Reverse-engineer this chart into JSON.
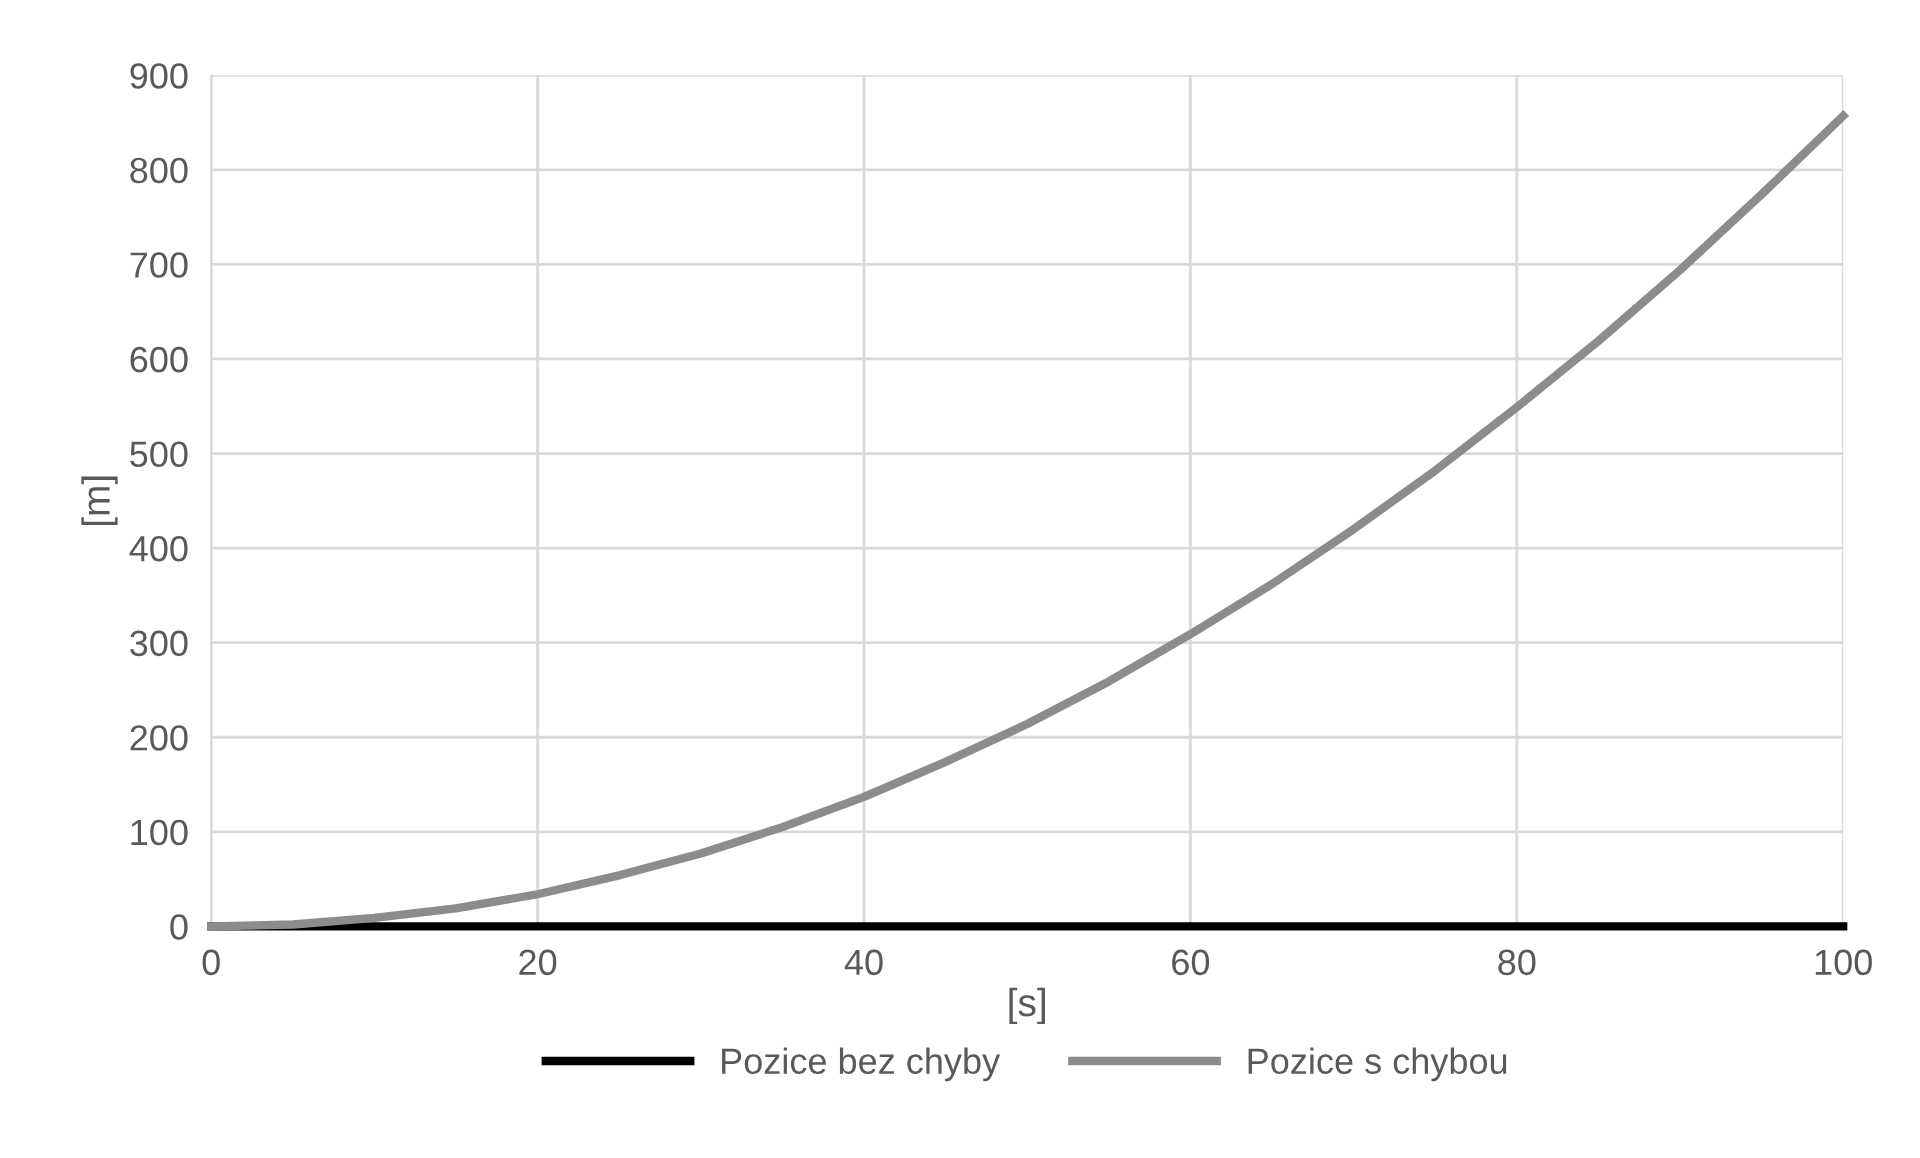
{
  "chart_data": {
    "type": "line",
    "xlabel": "[s]",
    "ylabel": "[m]",
    "x": [
      0,
      5,
      10,
      15,
      20,
      25,
      30,
      35,
      40,
      45,
      50,
      55,
      60,
      65,
      70,
      75,
      80,
      85,
      90,
      95,
      100
    ],
    "series": [
      {
        "name": "Pozice bez chyby",
        "color": "#000000",
        "values": [
          0,
          0,
          0,
          0,
          0,
          0,
          0,
          0,
          0,
          0,
          0,
          0,
          0,
          0,
          0,
          0,
          0,
          0,
          0,
          0,
          0
        ]
      },
      {
        "name": "Pozice s chybou",
        "color": "#8c8c8c",
        "values": [
          0,
          2,
          9,
          19,
          34,
          54,
          77,
          105,
          137,
          174,
          214,
          259,
          309,
          362,
          420,
          482,
          549,
          619,
          694,
          774,
          857
        ]
      }
    ],
    "xlim": [
      0,
      100
    ],
    "xticks": [
      0,
      20,
      40,
      60,
      80,
      100
    ],
    "ylim": [
      0,
      900
    ],
    "yticks": [
      0,
      100,
      200,
      300,
      400,
      500,
      600,
      700,
      800,
      900
    ],
    "grid": true,
    "legend": "bottom",
    "marker": "none",
    "line_style": "solid"
  }
}
